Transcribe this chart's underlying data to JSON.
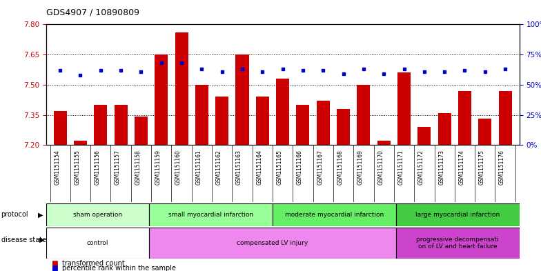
{
  "title": "GDS4907 / 10890809",
  "samples": [
    "GSM1151154",
    "GSM1151155",
    "GSM1151156",
    "GSM1151157",
    "GSM1151158",
    "GSM1151159",
    "GSM1151160",
    "GSM1151161",
    "GSM1151162",
    "GSM1151163",
    "GSM1151164",
    "GSM1151165",
    "GSM1151166",
    "GSM1151167",
    "GSM1151168",
    "GSM1151169",
    "GSM1151170",
    "GSM1151171",
    "GSM1151172",
    "GSM1151173",
    "GSM1151174",
    "GSM1151175",
    "GSM1151176"
  ],
  "bar_values": [
    7.37,
    7.22,
    7.4,
    7.4,
    7.34,
    7.65,
    7.76,
    7.5,
    7.44,
    7.65,
    7.44,
    7.53,
    7.4,
    7.42,
    7.38,
    7.5,
    7.22,
    7.56,
    7.29,
    7.36,
    7.47,
    7.33,
    7.47
  ],
  "percentile_values": [
    62,
    58,
    62,
    62,
    61,
    68,
    68,
    63,
    61,
    63,
    61,
    63,
    62,
    62,
    59,
    63,
    59,
    63,
    61,
    61,
    62,
    61,
    63
  ],
  "ylim_left": [
    7.2,
    7.8
  ],
  "ylim_right": [
    0,
    100
  ],
  "yticks_left": [
    7.2,
    7.35,
    7.5,
    7.65,
    7.8
  ],
  "yticks_right": [
    0,
    25,
    50,
    75,
    100
  ],
  "ytick_labels_right": [
    "0%",
    "25%",
    "50%",
    "75%",
    "100%"
  ],
  "bar_color": "#cc0000",
  "dot_color": "#0000cc",
  "bar_baseline": 7.2,
  "protocol_groups": [
    {
      "label": "sham operation",
      "start": 0,
      "end": 5,
      "color": "#ccffcc"
    },
    {
      "label": "small myocardial infarction",
      "start": 5,
      "end": 11,
      "color": "#99ff99"
    },
    {
      "label": "moderate myocardial infarction",
      "start": 11,
      "end": 17,
      "color": "#66ee66"
    },
    {
      "label": "large myocardial infarction",
      "start": 17,
      "end": 23,
      "color": "#44cc44"
    }
  ],
  "disease_groups": [
    {
      "label": "control",
      "start": 0,
      "end": 5,
      "color": "#ee88ee"
    },
    {
      "label": "compensated LV injury",
      "start": 5,
      "end": 17,
      "color": "#ee88ee"
    },
    {
      "label": "progressive decompensati\non of LV and heart failure",
      "start": 17,
      "end": 23,
      "color": "#cc44cc"
    }
  ],
  "bg_color": "#ffffff",
  "plot_bg": "#ffffff",
  "axis_color_left": "#cc0000",
  "axis_color_right": "#0000cc",
  "xtick_bg": "#cccccc"
}
